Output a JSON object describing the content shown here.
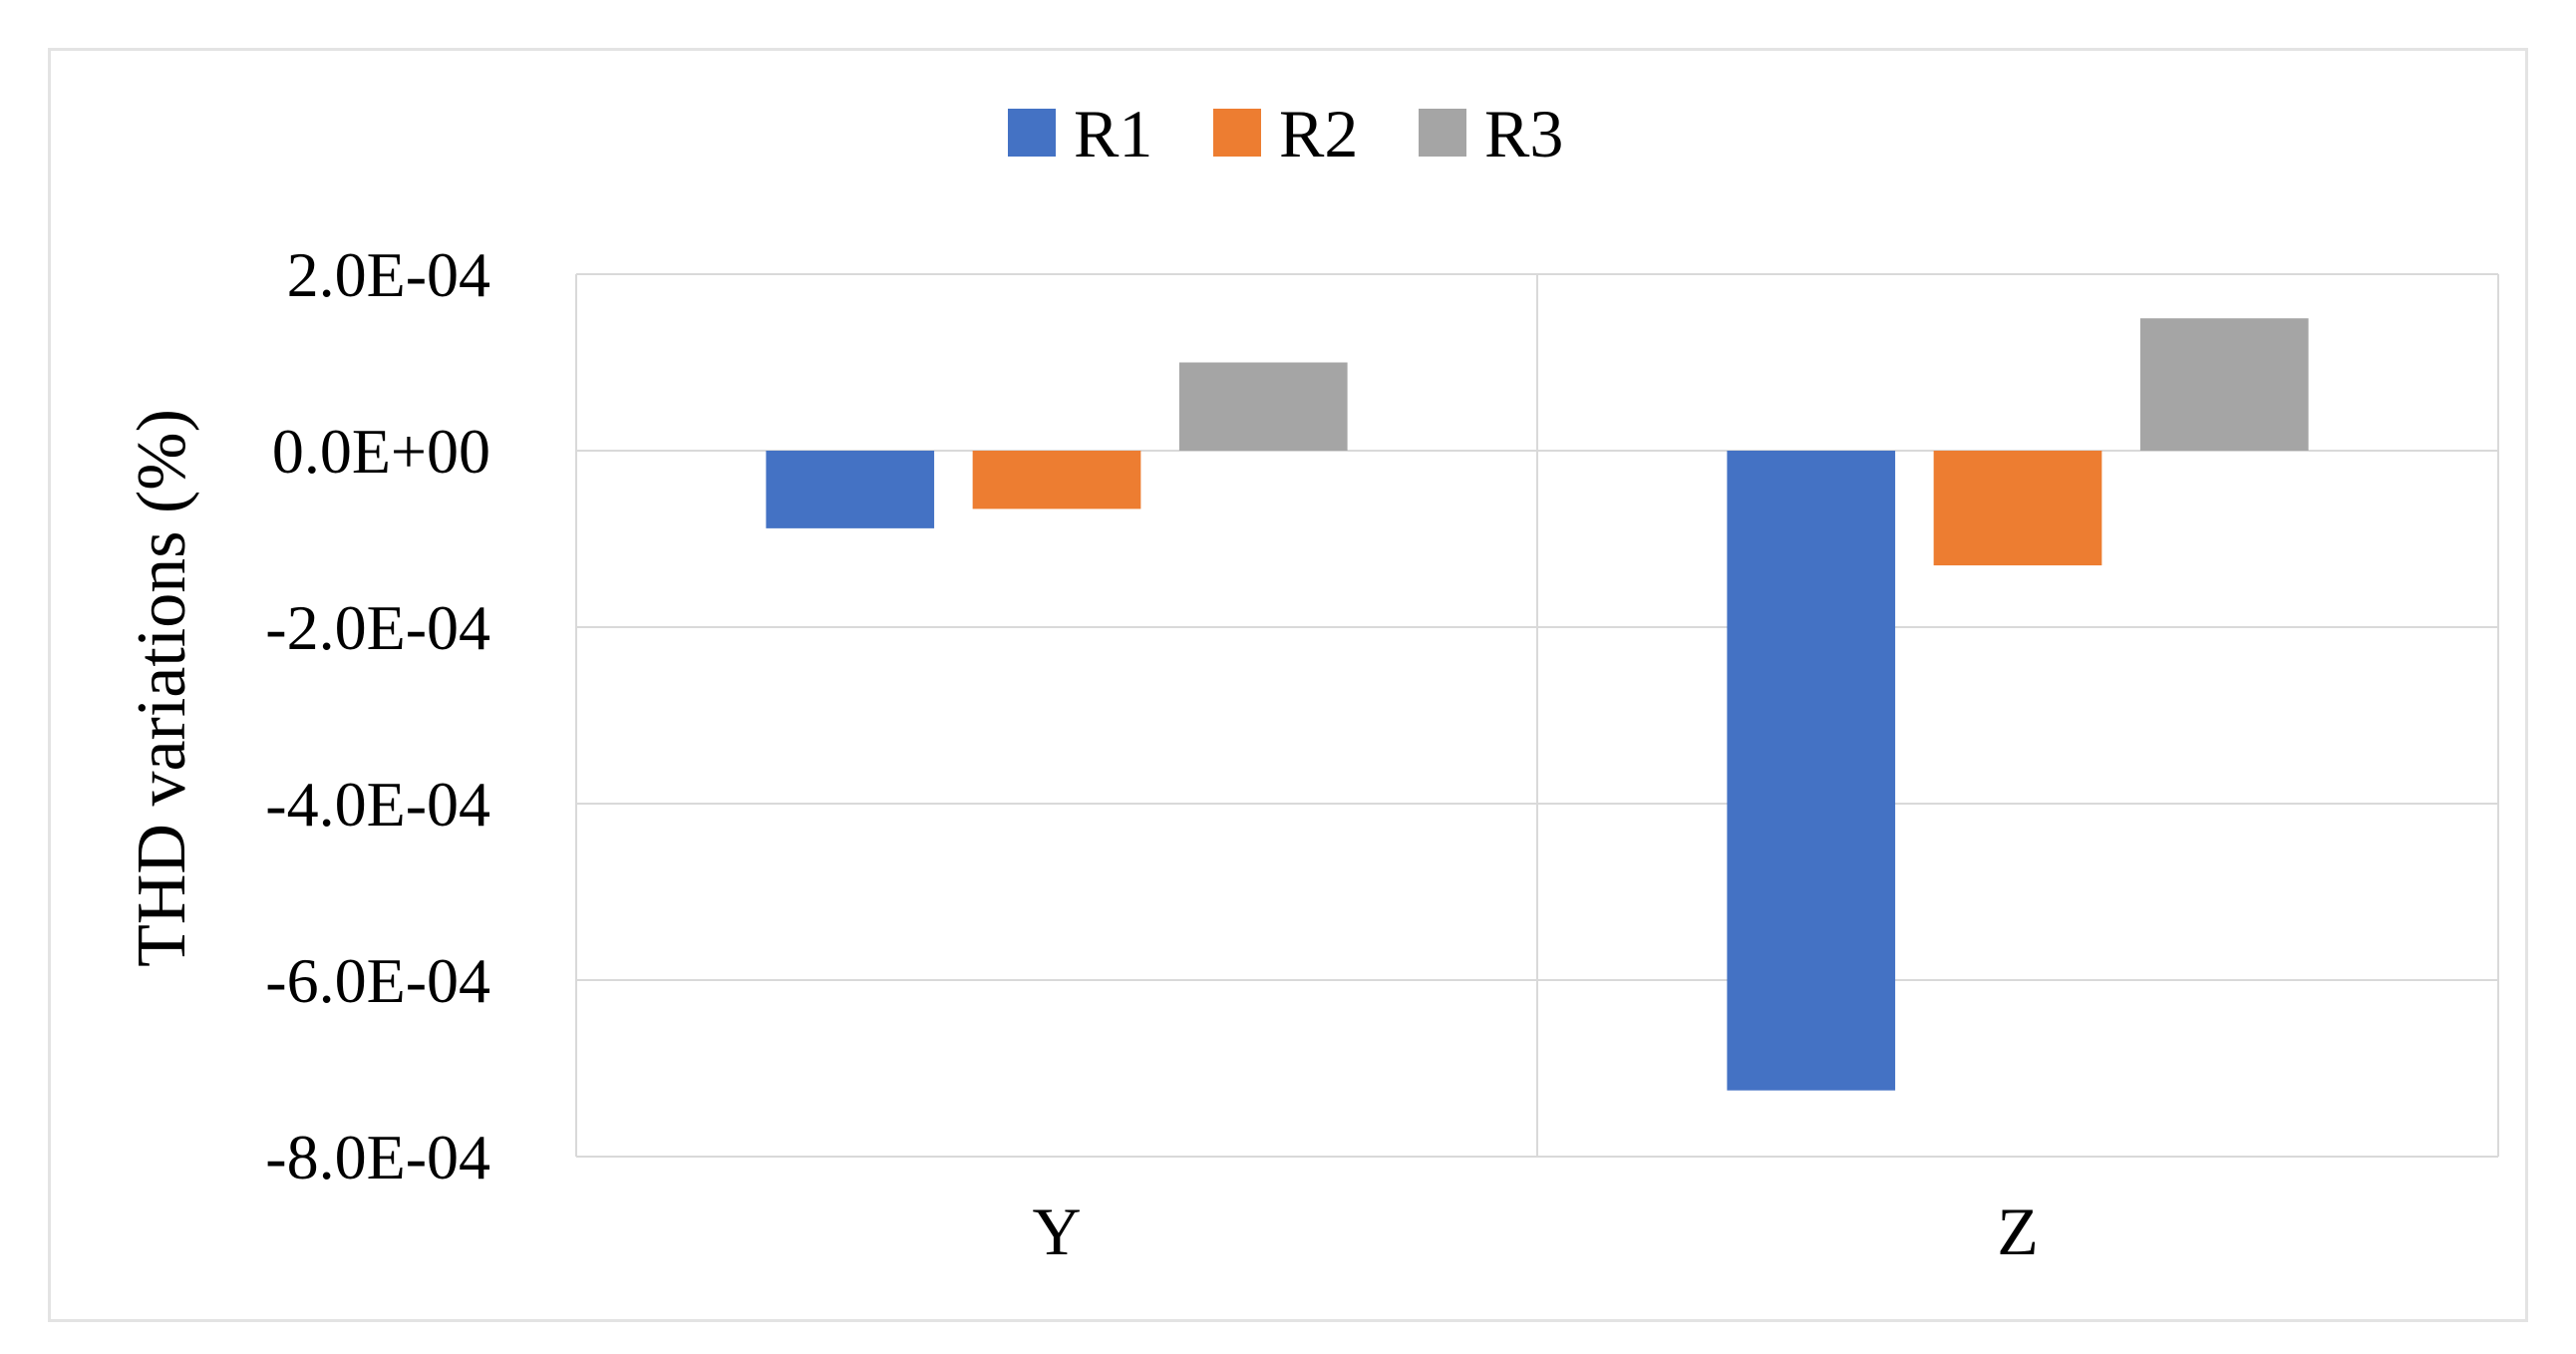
{
  "chart_data": {
    "type": "bar",
    "categories": [
      "Y",
      "Z"
    ],
    "series": [
      {
        "name": "R1",
        "color": "#4472C4",
        "values": [
          -8.8e-05,
          -0.000725
        ]
      },
      {
        "name": "R2",
        "color": "#ED7D31",
        "values": [
          -6.6e-05,
          -0.00013
        ]
      },
      {
        "name": "R3",
        "color": "#A5A5A5",
        "values": [
          0.0001,
          0.00015
        ]
      }
    ],
    "title": "",
    "xlabel": "",
    "ylabel": "THD variations (%)",
    "ylim": [
      -0.0008,
      0.0002
    ],
    "yticks": [
      0.0002,
      0,
      -0.0002,
      -0.0004,
      -0.0006,
      -0.0008
    ],
    "ytick_labels": [
      "2.0E-04",
      "0.0E+00",
      "-2.0E-04",
      "-4.0E-04",
      "-6.0E-04",
      "-8.0E-04"
    ],
    "grid": true,
    "legend_position": "top-center"
  }
}
